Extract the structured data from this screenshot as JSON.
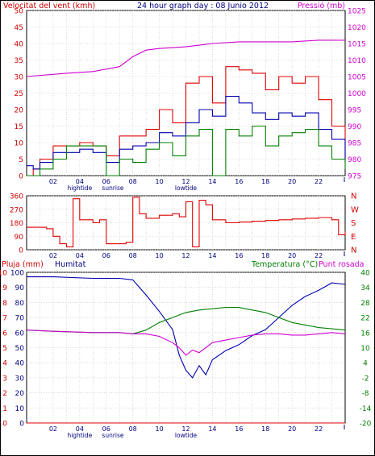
{
  "chart_data": [
    {
      "type": "line",
      "title": "24 hour graph day : 08 Junio 2012",
      "left_axis_label": "Velocitat del vent (kmh)",
      "right_axis_label": "Pressió (mb)",
      "x_ticks": [
        "02",
        "04",
        "06",
        "08",
        "10",
        "12",
        "14",
        "16",
        "18",
        "20",
        "22"
      ],
      "x_events": [
        {
          "label": "hightide",
          "x": 4
        },
        {
          "label": "sunrise",
          "x": 6.5
        },
        {
          "label": "lowtide",
          "x": 12
        }
      ],
      "left_ylim": [
        0,
        50
      ],
      "left_ticks": [
        0,
        5,
        10,
        15,
        20,
        25,
        30,
        35,
        40,
        45,
        50
      ],
      "right_ylim": [
        975,
        1025
      ],
      "right_ticks": [
        975,
        980,
        985,
        990,
        995,
        1000,
        1005,
        1010,
        1015,
        1020,
        1025
      ],
      "colors": {
        "gust": "#e00000",
        "average": "#0000b0",
        "wind": "#008000",
        "pressure": "#d000d0"
      },
      "series": [
        {
          "name": "",
          "axis": "right",
          "color": "#d000d0",
          "x": [
            0,
            3,
            5,
            7,
            8,
            9,
            10,
            12,
            14,
            16,
            18,
            20,
            22,
            24
          ],
          "y": [
            1005,
            1006,
            1006.5,
            1008,
            1011,
            1013,
            1013.5,
            1014,
            1015,
            1015.5,
            1015.5,
            1015.5,
            1016,
            1016
          ]
        },
        {
          "name": "",
          "axis": "left",
          "color": "#e00000",
          "x": [
            0,
            0.5,
            1,
            2,
            3,
            4,
            5,
            6,
            7,
            8,
            9,
            10,
            11,
            12,
            13,
            14,
            15,
            16,
            17,
            18,
            19,
            20,
            21,
            22,
            23,
            24
          ],
          "y": [
            0,
            2,
            5,
            9,
            9,
            10,
            9,
            6,
            12,
            12,
            14,
            20,
            16,
            28,
            30,
            22,
            33,
            32,
            31,
            26,
            30,
            28,
            30,
            23,
            15,
            4
          ]
        },
        {
          "name": "",
          "axis": "left",
          "color": "#0000b0",
          "x": [
            0,
            0.5,
            1,
            2,
            3,
            4,
            5,
            6,
            7,
            8,
            9,
            10,
            11,
            12,
            13,
            14,
            15,
            16,
            17,
            18,
            19,
            20,
            21,
            22,
            23,
            24
          ],
          "y": [
            3,
            2,
            4,
            7,
            7,
            8,
            7,
            4,
            8,
            9,
            10,
            13,
            12,
            16,
            20,
            18,
            24,
            22,
            19,
            17,
            19,
            18,
            19,
            14,
            11,
            5
          ]
        },
        {
          "name": "",
          "axis": "left",
          "color": "#008000",
          "x": [
            0,
            0.5,
            1,
            2,
            3,
            4,
            5,
            6,
            7,
            8,
            9,
            10,
            11,
            12,
            13,
            14,
            15,
            16,
            17,
            18,
            19,
            20,
            21,
            22,
            23,
            24
          ],
          "y": [
            0,
            0,
            2,
            5,
            9,
            9,
            9,
            0,
            5,
            4,
            8,
            10,
            6,
            12,
            14,
            0,
            14,
            12,
            15,
            9,
            12,
            13,
            14,
            9,
            5,
            2
          ]
        }
      ]
    },
    {
      "type": "line",
      "x_ticks": [
        "02",
        "04",
        "06",
        "08",
        "10",
        "12",
        "14",
        "16",
        "18",
        "20",
        "22"
      ],
      "ylim": [
        0,
        360
      ],
      "y_ticks": [
        0,
        90,
        180,
        270,
        360
      ],
      "direction_labels": [
        "N",
        "W",
        "S",
        "E",
        "N"
      ],
      "series": [
        {
          "name": "",
          "color": "#e00000",
          "x": [
            0,
            1,
            1.5,
            2,
            2.5,
            3,
            3.5,
            4,
            5,
            5.5,
            6,
            7,
            7.5,
            8,
            8.5,
            9,
            10,
            11,
            11.5,
            12,
            12.5,
            13,
            13.5,
            14,
            15,
            16,
            17,
            18,
            19,
            20,
            21,
            22,
            23,
            23.5,
            24
          ],
          "y": [
            150,
            150,
            140,
            90,
            40,
            20,
            340,
            200,
            180,
            200,
            40,
            40,
            50,
            350,
            240,
            210,
            230,
            240,
            220,
            320,
            20,
            330,
            300,
            200,
            180,
            185,
            190,
            195,
            200,
            205,
            210,
            215,
            200,
            100,
            120
          ]
        }
      ]
    },
    {
      "type": "line",
      "left_axis_label": "Pluja (mm)",
      "left_axis_label2": "Humitat",
      "right_axis_label": "Temperatura (°C)",
      "right_axis_label2": "Punt rosada",
      "x_ticks": [
        "02",
        "04",
        "06",
        "08",
        "10",
        "12",
        "14",
        "16",
        "18",
        "20",
        "22"
      ],
      "x_events": [
        {
          "label": "hightide",
          "x": 4
        },
        {
          "label": "sunrise",
          "x": 6.5
        },
        {
          "label": "lowtide",
          "x": 12
        }
      ],
      "rain_ylim": [
        0,
        10
      ],
      "rain_ticks": [
        0,
        1,
        2,
        3,
        4,
        5,
        6,
        7,
        8,
        9,
        10
      ],
      "humidity_ylim": [
        0,
        100
      ],
      "humidity_ticks": [
        0,
        10,
        20,
        30,
        40,
        50,
        60,
        70,
        80,
        90,
        100
      ],
      "temp_ylim": [
        -20,
        40
      ],
      "temp_ticks": [
        -20,
        -14,
        -8,
        -2,
        4,
        10,
        16,
        22,
        28,
        34,
        40
      ],
      "series": [
        {
          "name": "",
          "axis": "left",
          "color": "#e00000",
          "x": [
            0,
            24
          ],
          "y": [
            0,
            0
          ]
        },
        {
          "name": "",
          "axis": "humidity",
          "color": "#0000b0",
          "x": [
            0,
            2,
            5,
            7,
            8,
            9,
            10,
            11,
            11.5,
            12,
            12.5,
            13,
            13.5,
            14,
            15,
            16,
            17,
            18,
            19,
            20,
            21,
            22,
            23,
            24
          ],
          "y": [
            97,
            97,
            96,
            96,
            95,
            85,
            74,
            62,
            45,
            35,
            30,
            38,
            32,
            42,
            48,
            52,
            58,
            62,
            70,
            78,
            84,
            88,
            93,
            92
          ]
        },
        {
          "name": "",
          "axis": "temp",
          "color": "#008000",
          "x": [
            0,
            2,
            5,
            7,
            8,
            9,
            10,
            11,
            12,
            13,
            14,
            15,
            16,
            17,
            18,
            19,
            20,
            21,
            22,
            23,
            24
          ],
          "y": [
            17,
            16.5,
            16,
            16,
            15.5,
            17,
            20,
            22,
            24,
            25,
            25.5,
            26,
            26,
            25,
            24,
            22,
            20,
            19,
            18,
            17.5,
            17
          ]
        },
        {
          "name": "",
          "axis": "temp",
          "color": "#d000d0",
          "x": [
            0,
            2,
            5,
            7,
            8,
            9,
            10,
            11,
            11.5,
            12,
            12.5,
            13,
            13.5,
            14,
            15,
            16,
            17,
            18,
            19,
            20,
            21,
            22,
            23,
            24
          ],
          "y": [
            17,
            16.5,
            16,
            16,
            15.5,
            15.5,
            14.5,
            12,
            10,
            7,
            9,
            8,
            10,
            12,
            13,
            14,
            15,
            15.5,
            15.5,
            15,
            15,
            15.5,
            16,
            15.5
          ]
        }
      ]
    }
  ]
}
